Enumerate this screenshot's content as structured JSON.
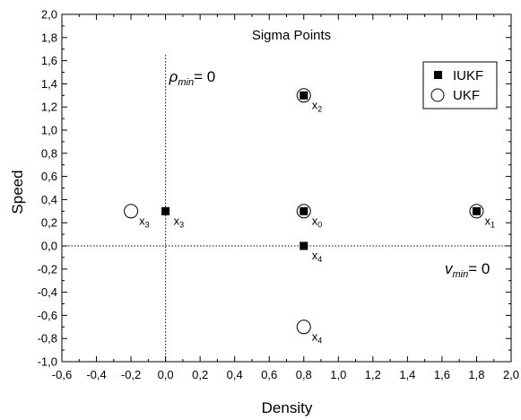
{
  "chart_data": {
    "type": "scatter",
    "title": "Sigma Points",
    "xlabel": "Density",
    "ylabel": "Speed",
    "xlim": [
      -0.6,
      2.0
    ],
    "ylim": [
      -1.0,
      2.0
    ],
    "xticks": [
      -0.6,
      -0.4,
      -0.2,
      0.0,
      0.2,
      0.4,
      0.6,
      0.8,
      1.0,
      1.2,
      1.4,
      1.6,
      1.8,
      2.0
    ],
    "xtick_labels": [
      "-0,6",
      "-0,4",
      "-0,2",
      "0,0",
      "0,2",
      "0,4",
      "0,6",
      "0,8",
      "1,0",
      "1,2",
      "1,4",
      "1,6",
      "1,8",
      "2,0"
    ],
    "yticks": [
      -1.0,
      -0.8,
      -0.6,
      -0.4,
      -0.2,
      0.0,
      0.2,
      0.4,
      0.6,
      0.8,
      1.0,
      1.2,
      1.4,
      1.6,
      1.8,
      2.0
    ],
    "ytick_labels": [
      "-1,0",
      "-0,8",
      "-0,6",
      "-0,4",
      "-0,2",
      "0,0",
      "0,2",
      "0,4",
      "0,6",
      "0,8",
      "1,0",
      "1,2",
      "1,4",
      "1,6",
      "1,8",
      "2,0"
    ],
    "grid": false,
    "legend_position": "top-right",
    "series": [
      {
        "name": "IUKF",
        "marker": "filled-square",
        "color": "#000000",
        "points": [
          {
            "x": 0.8,
            "y": 0.3,
            "label_main": "x",
            "label_sub": "0"
          },
          {
            "x": 1.8,
            "y": 0.3,
            "label_main": "x",
            "label_sub": "1"
          },
          {
            "x": 0.8,
            "y": 1.3,
            "label_main": "x",
            "label_sub": "2"
          },
          {
            "x": 0.0,
            "y": 0.3,
            "label_main": "x",
            "label_sub": "3"
          },
          {
            "x": 0.8,
            "y": 0.0,
            "label_main": "x",
            "label_sub": "4"
          }
        ]
      },
      {
        "name": "UKF",
        "marker": "open-circle",
        "color": "#000000",
        "points": [
          {
            "x": 0.8,
            "y": 0.3
          },
          {
            "x": 1.8,
            "y": 0.3
          },
          {
            "x": 0.8,
            "y": 1.3
          },
          {
            "x": -0.2,
            "y": 0.3,
            "label_main": "x",
            "label_sub": "3"
          },
          {
            "x": 0.8,
            "y": -0.7,
            "label_main": "x",
            "label_sub": "4"
          }
        ]
      }
    ],
    "reference_lines": [
      {
        "orientation": "vertical",
        "value": 0.0,
        "label_main": "ρ",
        "label_sub": "min",
        "label_suffix": "= 0"
      },
      {
        "orientation": "horizontal",
        "value": 0.0,
        "label_main": "v",
        "label_sub": "min",
        "label_suffix": "= 0"
      }
    ]
  }
}
